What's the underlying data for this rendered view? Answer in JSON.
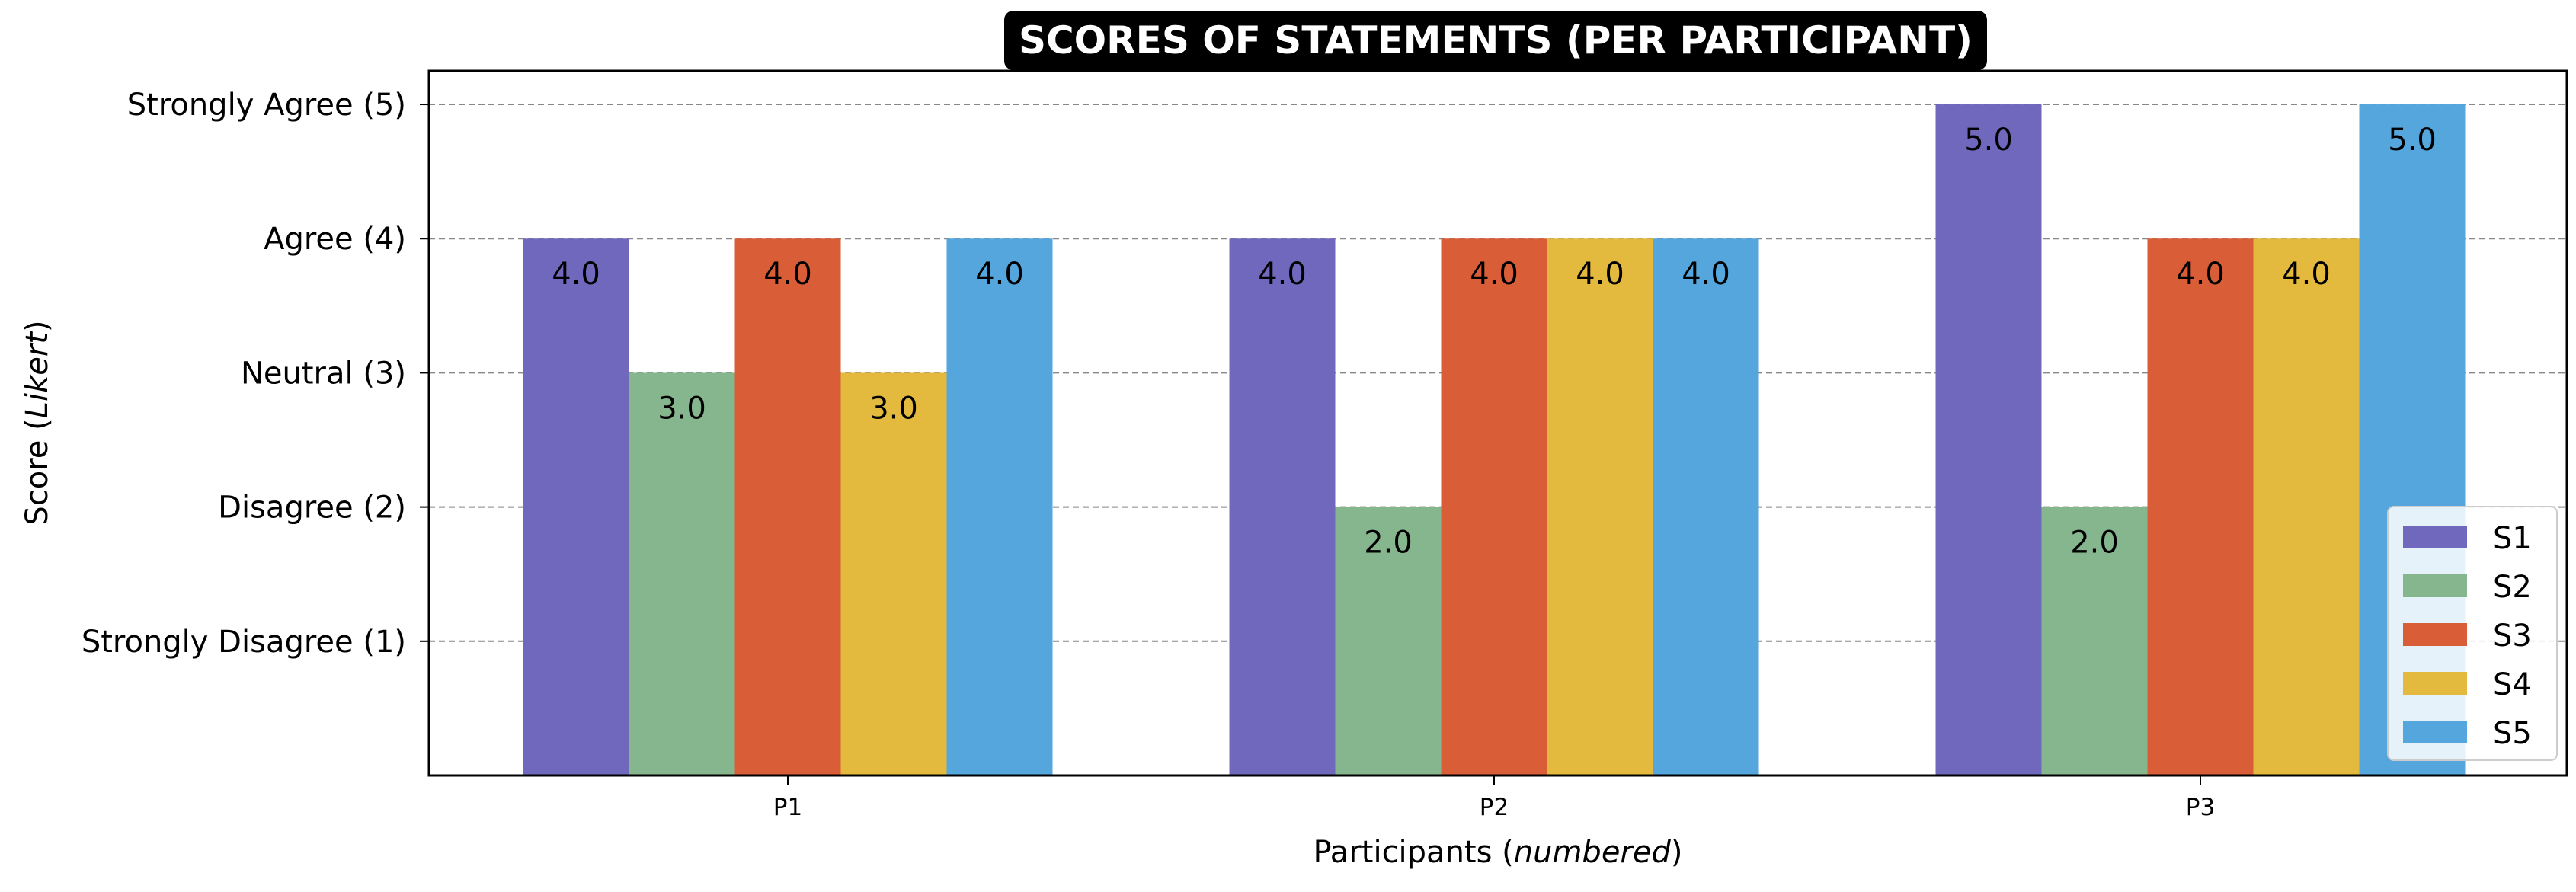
{
  "chart_data": {
    "type": "bar",
    "title": "SCORES OF STATEMENTS (PER PARTICIPANT)",
    "xlabel_parts": [
      "Participants (",
      "numbered",
      ")"
    ],
    "ylabel_parts": [
      "Score (",
      "Likert",
      ")"
    ],
    "categories": [
      "P1",
      "P2",
      "P3"
    ],
    "ylim": [
      0,
      5.25
    ],
    "yticks": [
      {
        "value": 1,
        "label": "Strongly Disagree (1)"
      },
      {
        "value": 2,
        "label": "Disagree (2)"
      },
      {
        "value": 3,
        "label": "Neutral (3)"
      },
      {
        "value": 4,
        "label": "Agree (4)"
      },
      {
        "value": 5,
        "label": "Strongly Agree (5)"
      }
    ],
    "grid": "horizontal dashed",
    "legend_position": "lower right",
    "series": [
      {
        "name": "S1",
        "color": "#7068BD",
        "values": [
          4,
          4,
          5
        ],
        "labels": [
          "4.0",
          "4.0",
          "5.0"
        ]
      },
      {
        "name": "S2",
        "color": "#86B68E",
        "values": [
          3,
          2,
          2
        ],
        "labels": [
          "3.0",
          "2.0",
          "2.0"
        ]
      },
      {
        "name": "S3",
        "color": "#D95D37",
        "values": [
          4,
          4,
          4
        ],
        "labels": [
          "4.0",
          "4.0",
          "4.0"
        ]
      },
      {
        "name": "S4",
        "color": "#E4BA3E",
        "values": [
          3,
          4,
          4
        ],
        "labels": [
          "3.0",
          "4.0",
          "4.0"
        ]
      },
      {
        "name": "S5",
        "color": "#54A6DC",
        "values": [
          4,
          4,
          5
        ],
        "labels": [
          "4.0",
          "4.0",
          "5.0"
        ]
      }
    ]
  }
}
